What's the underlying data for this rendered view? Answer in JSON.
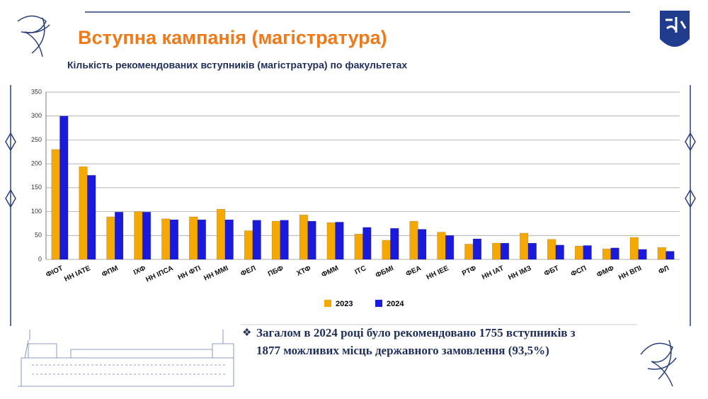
{
  "header": {
    "title": "Вступна кампанія (магістратура)"
  },
  "chart_data": {
    "type": "bar",
    "title": "Кількість рекомендованих вступників (магістратура) по факультетах",
    "categories": [
      "ФІОТ",
      "НН ІАТЕ",
      "ФПМ",
      "ІХФ",
      "НН ІПСА",
      "НН ФТІ",
      "НН ММІ",
      "ФЕЛ",
      "ПБФ",
      "ХТФ",
      "ФММ",
      "ІТС",
      "ФБМІ",
      "ФЕА",
      "НН ІЕЕ",
      "РТФ",
      "НН ІАТ",
      "НН ІМЗ",
      "ФБТ",
      "ФСП",
      "ФМФ",
      "НН ВПІ",
      "ФЛ"
    ],
    "series": [
      {
        "name": "2023",
        "color": "#f5a800",
        "values": [
          230,
          194,
          89,
          100,
          85,
          89,
          105,
          60,
          80,
          93,
          77,
          53,
          40,
          80,
          57,
          32,
          34,
          55,
          42,
          28,
          22,
          46,
          25
        ]
      },
      {
        "name": "2024",
        "color": "#1a1adc",
        "values": [
          300,
          176,
          99,
          99,
          83,
          83,
          83,
          82,
          82,
          80,
          78,
          67,
          65,
          63,
          50,
          43,
          34,
          34,
          30,
          29,
          24,
          21,
          17
        ]
      }
    ],
    "ylim": [
      0,
      350
    ],
    "yticks": [
      0,
      50,
      100,
      150,
      200,
      250,
      300,
      350
    ],
    "grid": true,
    "legend": "bottom"
  },
  "summary": {
    "bullet": "❖",
    "lines": [
      "Загалом в 2024 році було рекомендовано 1755 вступників з",
      "1877 можливих місць державного замовлення (93,5%)"
    ]
  }
}
